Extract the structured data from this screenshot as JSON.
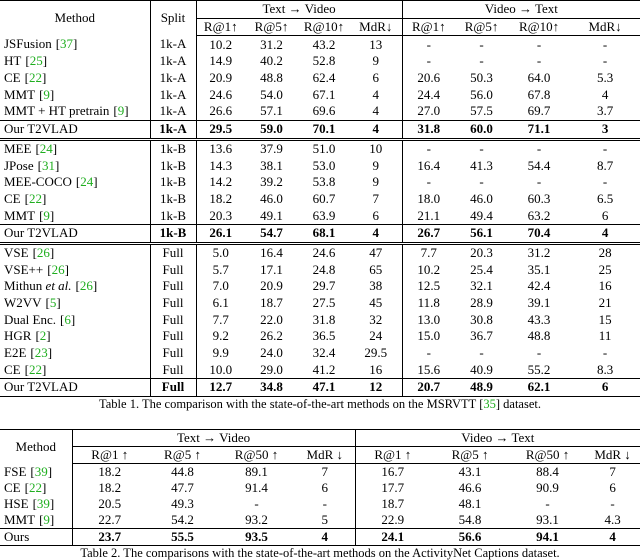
{
  "table1": {
    "header": {
      "method": "Method",
      "split": "Split",
      "groups": [
        "Text → Video",
        "Video → Text"
      ],
      "metrics_t2v": [
        "R@1↑",
        "R@5↑",
        "R@10↑",
        "MdR↓"
      ],
      "metrics_v2t": [
        "R@1↑",
        "R@5↑",
        "R@10↑",
        "MdR↓"
      ]
    },
    "sections": [
      {
        "rows": [
          {
            "method": "JSFusion",
            "ref": "[37]",
            "split": "1k-A",
            "values": [
              "10.2",
              "31.2",
              "43.2",
              "13",
              "-",
              "-",
              "-",
              "-"
            ]
          },
          {
            "method": "HT",
            "ref": "[25]",
            "split": "1k-A",
            "values": [
              "14.9",
              "40.2",
              "52.8",
              "9",
              "-",
              "-",
              "-",
              "-"
            ]
          },
          {
            "method": "CE",
            "ref": "[22]",
            "split": "1k-A",
            "values": [
              "20.9",
              "48.8",
              "62.4",
              "6",
              "20.6",
              "50.3",
              "64.0",
              "5.3"
            ]
          },
          {
            "method": "MMT",
            "ref": "[9]",
            "split": "1k-A",
            "values": [
              "24.6",
              "54.0",
              "67.1",
              "4",
              "24.4",
              "56.0",
              "67.8",
              "4"
            ]
          },
          {
            "method": "MMT + HT pretrain",
            "ref": "[9]",
            "split": "1k-A",
            "values": [
              "26.6",
              "57.1",
              "69.6",
              "4",
              "27.0",
              "57.5",
              "69.7",
              "3.7"
            ]
          },
          {
            "method": "Our T2VLAD",
            "split": "1k-A",
            "highlight": true,
            "values": [
              "29.5",
              "59.0",
              "70.1",
              "4",
              "31.8",
              "60.0",
              "71.1",
              "3"
            ]
          }
        ]
      },
      {
        "rows": [
          {
            "method": "MEE",
            "ref": "[24]",
            "split": "1k-B",
            "values": [
              "13.6",
              "37.9",
              "51.0",
              "10",
              "-",
              "-",
              "-",
              "-"
            ]
          },
          {
            "method": "JPose",
            "ref": "[31]",
            "split": "1k-B",
            "values": [
              "14.3",
              "38.1",
              "53.0",
              "9",
              "16.4",
              "41.3",
              "54.4",
              "8.7"
            ]
          },
          {
            "method": "MEE-COCO",
            "ref": "[24]",
            "split": "1k-B",
            "values": [
              "14.2",
              "39.2",
              "53.8",
              "9",
              "-",
              "-",
              "-",
              "-"
            ]
          },
          {
            "method": "CE",
            "ref": "[22]",
            "split": "1k-B",
            "values": [
              "18.2",
              "46.0",
              "60.7",
              "7",
              "18.0",
              "46.0",
              "60.3",
              "6.5"
            ]
          },
          {
            "method": "MMT",
            "ref": "[9]",
            "split": "1k-B",
            "values": [
              "20.3",
              "49.1",
              "63.9",
              "6",
              "21.1",
              "49.4",
              "63.2",
              "6"
            ]
          },
          {
            "method": "Our T2VLAD",
            "split": "1k-B",
            "highlight": true,
            "values": [
              "26.1",
              "54.7",
              "68.1",
              "4",
              "26.7",
              "56.1",
              "70.4",
              "4"
            ]
          }
        ]
      },
      {
        "rows": [
          {
            "method": "VSE",
            "ref": "[26]",
            "split": "Full",
            "values": [
              "5.0",
              "16.4",
              "24.6",
              "47",
              "7.7",
              "20.3",
              "31.2",
              "28"
            ]
          },
          {
            "method": "VSE++",
            "ref": "[26]",
            "split": "Full",
            "values": [
              "5.7",
              "17.1",
              "24.8",
              "65",
              "10.2",
              "25.4",
              "35.1",
              "25"
            ]
          },
          {
            "method": "Mithun et al.",
            "ref": "[26]",
            "split": "Full",
            "values": [
              "7.0",
              "20.9",
              "29.7",
              "38",
              "12.5",
              "32.1",
              "42.4",
              "16"
            ]
          },
          {
            "method": "W2VV",
            "ref": "[5]",
            "split": "Full",
            "values": [
              "6.1",
              "18.7",
              "27.5",
              "45",
              "11.8",
              "28.9",
              "39.1",
              "21"
            ]
          },
          {
            "method": "Dual Enc.",
            "ref": "[6]",
            "split": "Full",
            "values": [
              "7.7",
              "22.0",
              "31.8",
              "32",
              "13.0",
              "30.8",
              "43.3",
              "15"
            ]
          },
          {
            "method": "HGR",
            "ref": "[2]",
            "split": "Full",
            "values": [
              "9.2",
              "26.2",
              "36.5",
              "24",
              "15.0",
              "36.7",
              "48.8",
              "11"
            ]
          },
          {
            "method": "E2E",
            "ref": "[23]",
            "split": "Full",
            "values": [
              "9.9",
              "24.0",
              "32.4",
              "29.5",
              "-",
              "-",
              "-",
              "-"
            ]
          },
          {
            "method": "CE",
            "ref": "[22]",
            "split": "Full",
            "values": [
              "10.0",
              "29.0",
              "41.2",
              "16",
              "15.6",
              "40.9",
              "55.2",
              "8.3"
            ]
          },
          {
            "method": "Our T2VLAD",
            "split": "Full",
            "highlight": true,
            "values": [
              "12.7",
              "34.8",
              "47.1",
              "12",
              "20.7",
              "48.9",
              "62.1",
              "6"
            ]
          }
        ]
      }
    ],
    "caption": "Table 1. The comparison with the state-of-the-art methods on the MSRVTT [35] dataset."
  },
  "table2": {
    "header": {
      "method": "Method",
      "groups": [
        "Text → Video",
        "Video → Text"
      ],
      "metrics_t2v": [
        "R@1 ↑",
        "R@5 ↑",
        "R@50 ↑",
        "MdR ↓"
      ],
      "metrics_v2t": [
        "R@1 ↑",
        "R@5 ↑",
        "R@50 ↑",
        "MdR ↓"
      ]
    },
    "rows": [
      {
        "method": "FSE",
        "ref": "[39]",
        "values": [
          "18.2",
          "44.8",
          "89.1",
          "7",
          "16.7",
          "43.1",
          "88.4",
          "7"
        ]
      },
      {
        "method": "CE",
        "ref": "[22]",
        "values": [
          "18.2",
          "47.7",
          "91.4",
          "6",
          "17.7",
          "46.6",
          "90.9",
          "6"
        ]
      },
      {
        "method": "HSE",
        "ref": "[39]",
        "values": [
          "20.5",
          "49.3",
          "-",
          "-",
          "18.7",
          "48.1",
          "-",
          "-"
        ]
      },
      {
        "method": "MMT",
        "ref": "[9]",
        "values": [
          "22.7",
          "54.2",
          "93.2",
          "5",
          "22.9",
          "54.8",
          "93.1",
          "4.3"
        ]
      },
      {
        "method": "Ours",
        "highlight": true,
        "values": [
          "23.7",
          "55.5",
          "93.5",
          "4",
          "24.1",
          "56.6",
          "94.1",
          "4"
        ]
      }
    ],
    "caption": "Table 2. The comparisons with the state-of-the-art methods on the ActivityNet Captions dataset."
  }
}
